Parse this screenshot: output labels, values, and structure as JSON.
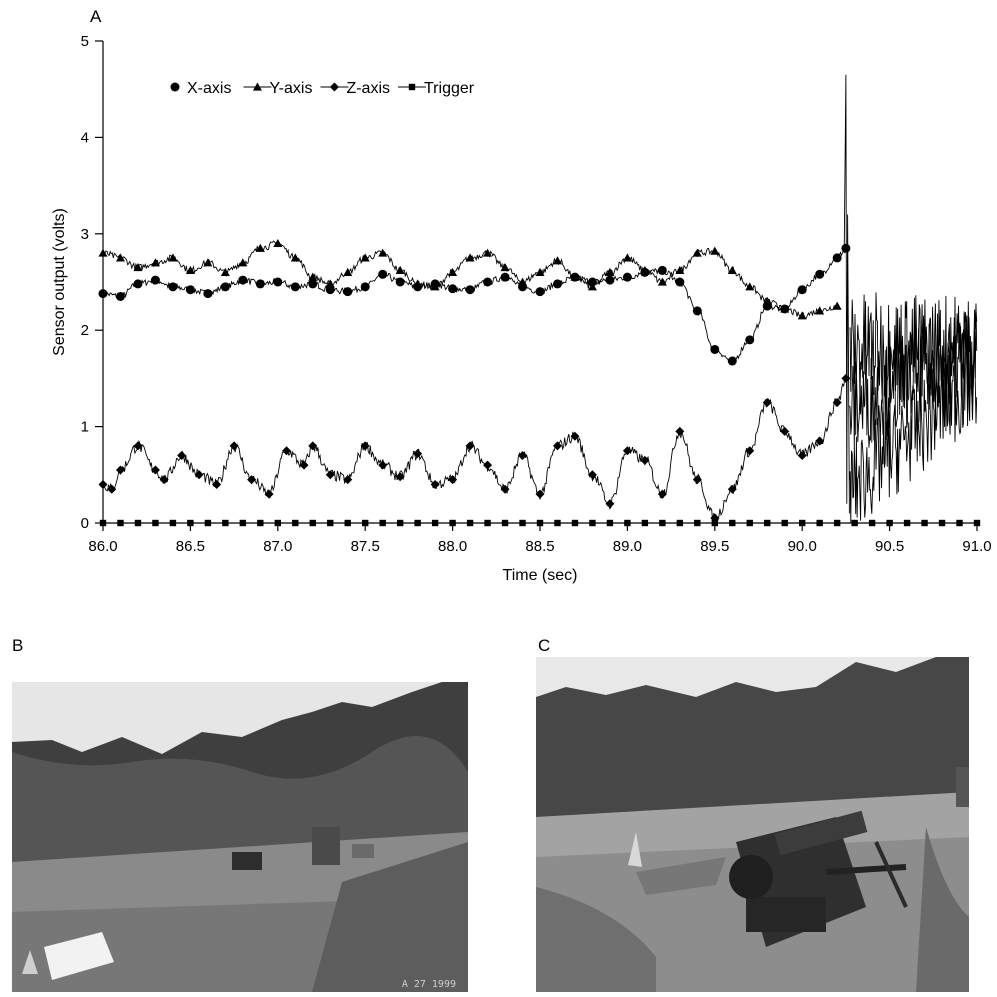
{
  "chart_data": {
    "type": "line",
    "panel_label": "A",
    "xlabel": "Time (sec)",
    "ylabel": "Sensor output (volts)",
    "xlim": [
      86.0,
      91.0
    ],
    "ylim": [
      0,
      5
    ],
    "x_ticks": [
      "86.0",
      "86.5",
      "87.0",
      "87.5",
      "88.0",
      "88.5",
      "89.0",
      "89.5",
      "90.0",
      "90.5",
      "91.0"
    ],
    "y_ticks": [
      "0",
      "1",
      "2",
      "3",
      "4",
      "5"
    ],
    "grid": false,
    "legend_position": "top-left",
    "series": [
      {
        "name": "X-axis",
        "marker": "circle",
        "x": [
          86.0,
          86.1,
          86.2,
          86.3,
          86.4,
          86.5,
          86.6,
          86.7,
          86.8,
          86.9,
          87.0,
          87.1,
          87.2,
          87.3,
          87.4,
          87.5,
          87.6,
          87.7,
          87.8,
          87.9,
          88.0,
          88.1,
          88.2,
          88.3,
          88.4,
          88.5,
          88.6,
          88.7,
          88.8,
          88.9,
          89.0,
          89.1,
          89.2,
          89.3,
          89.4,
          89.5,
          89.6,
          89.7,
          89.8,
          89.9,
          90.0,
          90.1,
          90.2,
          90.25
        ],
        "y": [
          2.38,
          2.35,
          2.48,
          2.52,
          2.45,
          2.42,
          2.38,
          2.45,
          2.52,
          2.48,
          2.5,
          2.45,
          2.48,
          2.42,
          2.4,
          2.45,
          2.58,
          2.5,
          2.45,
          2.48,
          2.43,
          2.42,
          2.5,
          2.55,
          2.45,
          2.4,
          2.48,
          2.55,
          2.5,
          2.52,
          2.55,
          2.6,
          2.62,
          2.5,
          2.2,
          1.8,
          1.68,
          1.9,
          2.25,
          2.22,
          2.42,
          2.58,
          2.75,
          2.85
        ]
      },
      {
        "name": "Y-axis",
        "marker": "triangle",
        "x": [
          86.0,
          86.1,
          86.2,
          86.3,
          86.4,
          86.5,
          86.6,
          86.7,
          86.8,
          86.9,
          87.0,
          87.1,
          87.2,
          87.3,
          87.4,
          87.5,
          87.6,
          87.7,
          87.8,
          87.9,
          88.0,
          88.1,
          88.2,
          88.3,
          88.4,
          88.5,
          88.6,
          88.7,
          88.8,
          88.9,
          89.0,
          89.1,
          89.2,
          89.3,
          89.4,
          89.5,
          89.6,
          89.7,
          89.8,
          89.9,
          90.0,
          90.1,
          90.2
        ],
        "y": [
          2.8,
          2.75,
          2.65,
          2.7,
          2.75,
          2.62,
          2.7,
          2.6,
          2.7,
          2.85,
          2.9,
          2.75,
          2.55,
          2.48,
          2.6,
          2.75,
          2.8,
          2.62,
          2.48,
          2.45,
          2.6,
          2.75,
          2.8,
          2.65,
          2.5,
          2.6,
          2.72,
          2.55,
          2.45,
          2.6,
          2.75,
          2.62,
          2.5,
          2.62,
          2.8,
          2.82,
          2.62,
          2.45,
          2.3,
          2.22,
          2.15,
          2.2,
          2.25
        ]
      },
      {
        "name": "Z-axis",
        "marker": "diamond",
        "x": [
          86.0,
          86.05,
          86.1,
          86.2,
          86.3,
          86.35,
          86.45,
          86.55,
          86.65,
          86.75,
          86.85,
          86.95,
          87.05,
          87.15,
          87.2,
          87.3,
          87.4,
          87.5,
          87.6,
          87.7,
          87.8,
          87.9,
          88.0,
          88.1,
          88.2,
          88.3,
          88.4,
          88.5,
          88.6,
          88.7,
          88.8,
          88.9,
          89.0,
          89.1,
          89.2,
          89.3,
          89.4,
          89.5,
          89.6,
          89.7,
          89.8,
          89.9,
          90.0,
          90.1,
          90.2,
          90.25
        ],
        "y": [
          0.4,
          0.35,
          0.55,
          0.8,
          0.55,
          0.45,
          0.7,
          0.5,
          0.4,
          0.8,
          0.45,
          0.3,
          0.75,
          0.6,
          0.8,
          0.5,
          0.45,
          0.8,
          0.6,
          0.48,
          0.72,
          0.4,
          0.45,
          0.8,
          0.6,
          0.35,
          0.7,
          0.3,
          0.8,
          0.9,
          0.5,
          0.2,
          0.75,
          0.65,
          0.3,
          0.95,
          0.45,
          0.05,
          0.35,
          0.75,
          1.25,
          0.95,
          0.7,
          0.85,
          1.25,
          1.5
        ]
      },
      {
        "name": "Trigger",
        "marker": "square",
        "x": [
          86.0,
          86.1,
          86.2,
          86.3,
          86.4,
          86.5,
          86.6,
          86.7,
          86.8,
          86.9,
          87.0,
          87.1,
          87.2,
          87.3,
          87.4,
          87.5,
          87.6,
          87.7,
          87.8,
          87.9,
          88.0,
          88.1,
          88.2,
          88.3,
          88.4,
          88.5,
          88.6,
          88.7,
          88.8,
          88.9,
          89.0,
          89.1,
          89.2,
          89.3,
          89.4,
          89.5,
          89.6,
          89.7,
          89.8,
          89.9,
          90.0,
          90.1,
          90.2,
          90.3,
          90.4,
          90.5,
          90.6,
          90.7,
          90.8,
          90.9,
          91.0
        ],
        "y": [
          0,
          0,
          0,
          0,
          0,
          0,
          0,
          0,
          0,
          0,
          0,
          0,
          0,
          0,
          0,
          0,
          0,
          0,
          0,
          0,
          0,
          0,
          0,
          0,
          0,
          0,
          0,
          0,
          0,
          0,
          0,
          0,
          0,
          0,
          0,
          0,
          0,
          0,
          0,
          0,
          0,
          0,
          0,
          0,
          0,
          0,
          0,
          0,
          0,
          0,
          0
        ]
      }
    ],
    "impact_spike": {
      "x": [
        90.24,
        90.25,
        90.255,
        90.26,
        90.27
      ],
      "y": [
        2.8,
        4.65,
        0.2,
        3.2,
        0.1
      ]
    },
    "post_impact_range": {
      "x_start": 90.27,
      "x_end": 91.0,
      "y_min": 0.6,
      "y_max": 2.8
    }
  },
  "photos": {
    "left": {
      "label": "B",
      "stamp": "A 27 1999"
    },
    "right": {
      "label": "C"
    }
  }
}
